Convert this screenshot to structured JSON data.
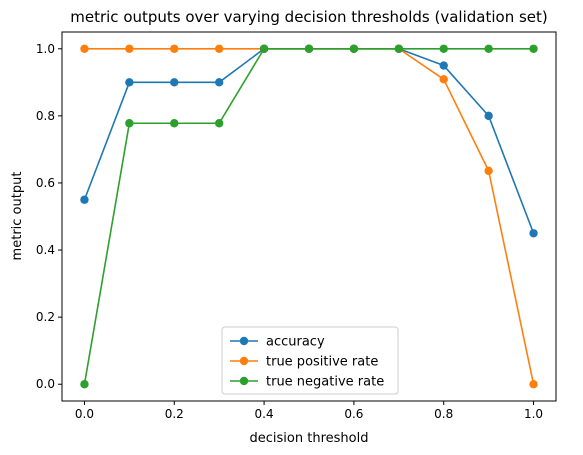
{
  "chart_data": {
    "type": "line",
    "title": "metric outputs over varying decision thresholds (validation set)",
    "xlabel": "decision threshold",
    "ylabel": "metric output",
    "x": [
      0.0,
      0.1,
      0.2,
      0.3,
      0.4,
      0.5,
      0.6,
      0.7,
      0.8,
      0.9,
      1.0
    ],
    "xlim": [
      -0.05,
      1.05
    ],
    "ylim": [
      -0.05,
      1.05
    ],
    "xticks": [
      "0.0",
      "0.2",
      "0.4",
      "0.6",
      "0.8",
      "1.0"
    ],
    "yticks": [
      "0.0",
      "0.2",
      "0.4",
      "0.6",
      "0.8",
      "1.0"
    ],
    "grid": false,
    "legend_position": "lower-center",
    "series": [
      {
        "name": "accuracy",
        "color": "#1f77b4",
        "values": [
          0.55,
          0.9,
          0.9,
          0.9,
          1.0,
          1.0,
          1.0,
          1.0,
          0.95,
          0.8,
          0.45
        ]
      },
      {
        "name": "true positive rate",
        "color": "#ff7f0e",
        "values": [
          1.0,
          1.0,
          1.0,
          1.0,
          1.0,
          1.0,
          1.0,
          1.0,
          0.909,
          0.636,
          0.0
        ]
      },
      {
        "name": "true negative rate",
        "color": "#2ca02c",
        "values": [
          0.0,
          0.778,
          0.778,
          0.778,
          1.0,
          1.0,
          1.0,
          1.0,
          1.0,
          1.0,
          1.0
        ]
      }
    ]
  }
}
